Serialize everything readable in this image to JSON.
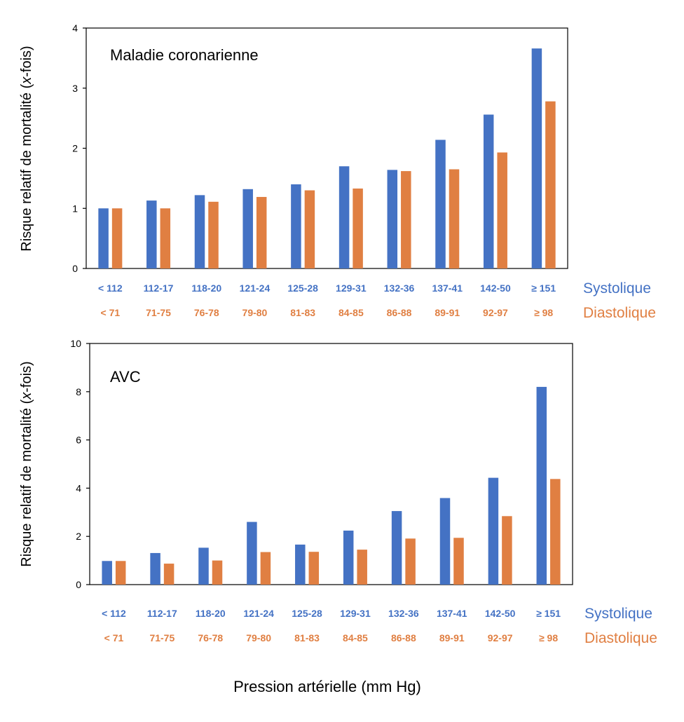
{
  "xlabel": "Pression artérielle (mm Hg)",
  "colors": {
    "systolic": "#4472c4",
    "diastolic": "#e07f42",
    "axis": "#000000"
  },
  "charts": [
    {
      "title": "Maladie coronarienne",
      "ylabel_parts": [
        "Risque relatif de mortalité (",
        "x",
        "-fois)"
      ]
    },
    {
      "title": "AVC",
      "ylabel_parts": [
        "Risque relatif de mortalité (",
        "x",
        "-fois)"
      ]
    }
  ],
  "chart_data": [
    {
      "type": "bar",
      "title": "Maladie coronarienne",
      "ylabel": "Risque relatif de mortalité (x-fois)",
      "ylim": [
        0,
        4
      ],
      "yticks": [
        0,
        1,
        2,
        3,
        4
      ],
      "grid": false,
      "categories_systolic": [
        "< 112",
        "112-17",
        "118-20",
        "121-24",
        "125-28",
        "129-31",
        "132-36",
        "137-41",
        "142-50",
        "≥ 151"
      ],
      "categories_diastolic": [
        "< 71",
        "71-75",
        "76-78",
        "79-80",
        "81-83",
        "84-85",
        "86-88",
        "89-91",
        "92-97",
        "≥ 98"
      ],
      "series": [
        {
          "name": "Systolique",
          "values": [
            1.0,
            1.13,
            1.22,
            1.32,
            1.4,
            1.7,
            1.64,
            2.14,
            2.56,
            3.66
          ]
        },
        {
          "name": "Diastolique",
          "values": [
            1.0,
            1.0,
            1.11,
            1.19,
            1.3,
            1.33,
            1.62,
            1.65,
            1.93,
            2.78
          ]
        }
      ]
    },
    {
      "type": "bar",
      "title": "AVC",
      "ylabel": "Risque relatif de mortalité (x-fois)",
      "ylim": [
        0,
        10
      ],
      "yticks": [
        0,
        2,
        4,
        6,
        8,
        10
      ],
      "grid": false,
      "categories_systolic": [
        "< 112",
        "112-17",
        "118-20",
        "121-24",
        "125-28",
        "129-31",
        "132-36",
        "137-41",
        "142-50",
        "≥ 151"
      ],
      "categories_diastolic": [
        "< 71",
        "71-75",
        "76-78",
        "79-80",
        "81-83",
        "84-85",
        "86-88",
        "89-91",
        "92-97",
        "≥ 98"
      ],
      "series": [
        {
          "name": "Systolique",
          "values": [
            0.98,
            1.31,
            1.53,
            2.6,
            1.66,
            2.24,
            3.05,
            3.59,
            4.43,
            8.2
          ]
        },
        {
          "name": "Diastolique",
          "values": [
            0.98,
            0.87,
            1.0,
            1.35,
            1.36,
            1.45,
            1.91,
            1.94,
            2.84,
            4.38
          ]
        }
      ]
    }
  ]
}
